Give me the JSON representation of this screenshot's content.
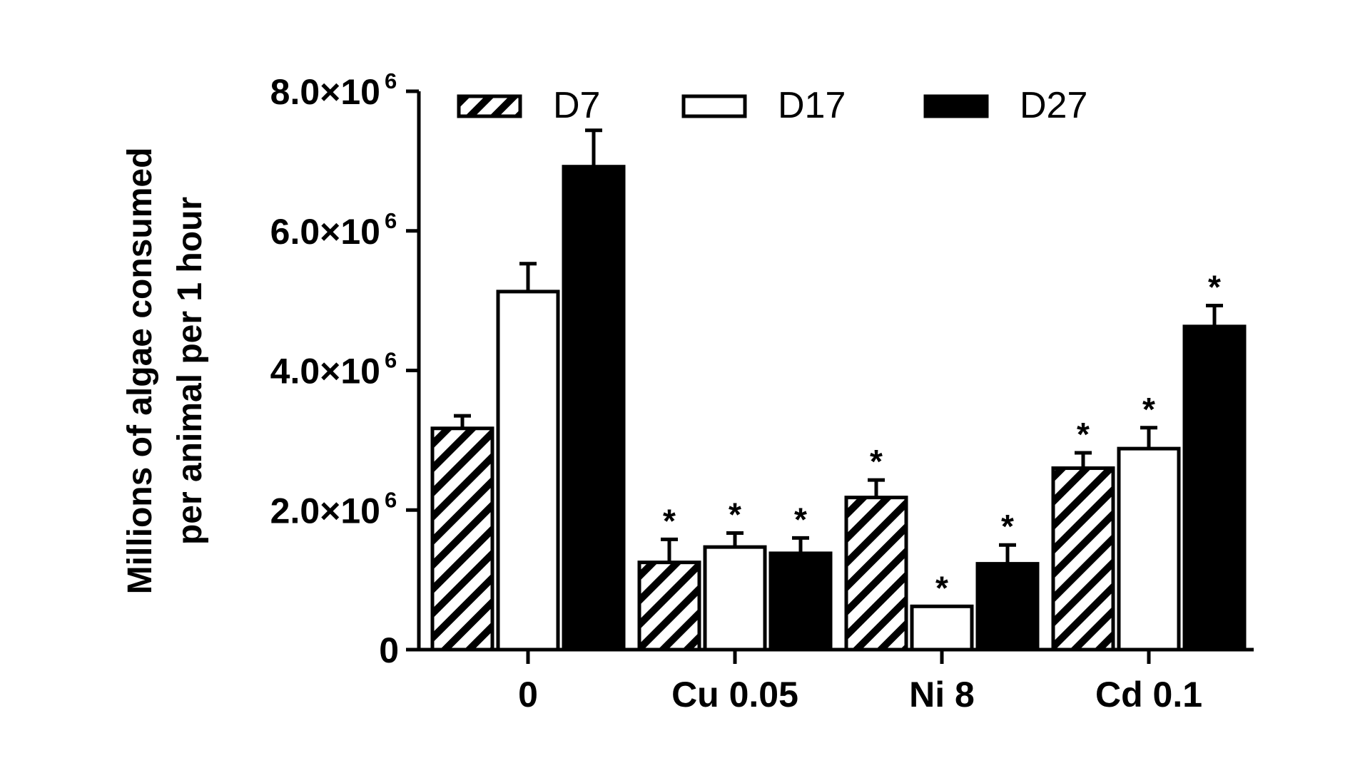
{
  "chart_data": {
    "type": "bar",
    "ylabel_line1": "Millions of algae consumed",
    "ylabel_line2": "per animal per 1 hour",
    "xlabel": "",
    "ylim": [
      0,
      8000000
    ],
    "y_ticks": [
      {
        "value": 0,
        "mantissa": "0",
        "exponent": ""
      },
      {
        "value": 2000000,
        "mantissa": "2.0×10",
        "exponent": "6"
      },
      {
        "value": 4000000,
        "mantissa": "4.0×10",
        "exponent": "6"
      },
      {
        "value": 6000000,
        "mantissa": "6.0×10",
        "exponent": "6"
      },
      {
        "value": 8000000,
        "mantissa": "8.0×10",
        "exponent": "6"
      }
    ],
    "categories": [
      "0",
      "Cu 0.05",
      "Ni 8",
      "Cd 0.1"
    ],
    "legend_placement": "top",
    "significance_marker": "*",
    "series": [
      {
        "name": "D7",
        "fill": "hatched",
        "values": [
          3170000,
          1250000,
          2180000,
          2600000
        ],
        "errors": [
          180000,
          330000,
          250000,
          220000
        ],
        "significant": [
          false,
          true,
          true,
          true
        ]
      },
      {
        "name": "D17",
        "fill": "white",
        "values": [
          5130000,
          1470000,
          620000,
          2880000
        ],
        "errors": [
          400000,
          200000,
          0,
          300000
        ],
        "significant": [
          false,
          true,
          true,
          true
        ]
      },
      {
        "name": "D27",
        "fill": "black",
        "values": [
          6920000,
          1380000,
          1230000,
          4630000
        ],
        "errors": [
          520000,
          220000,
          270000,
          300000
        ],
        "significant": [
          false,
          true,
          true,
          true
        ]
      }
    ],
    "colors": {
      "stroke": "#000000",
      "white_fill": "#ffffff",
      "black_fill": "#000000"
    }
  }
}
